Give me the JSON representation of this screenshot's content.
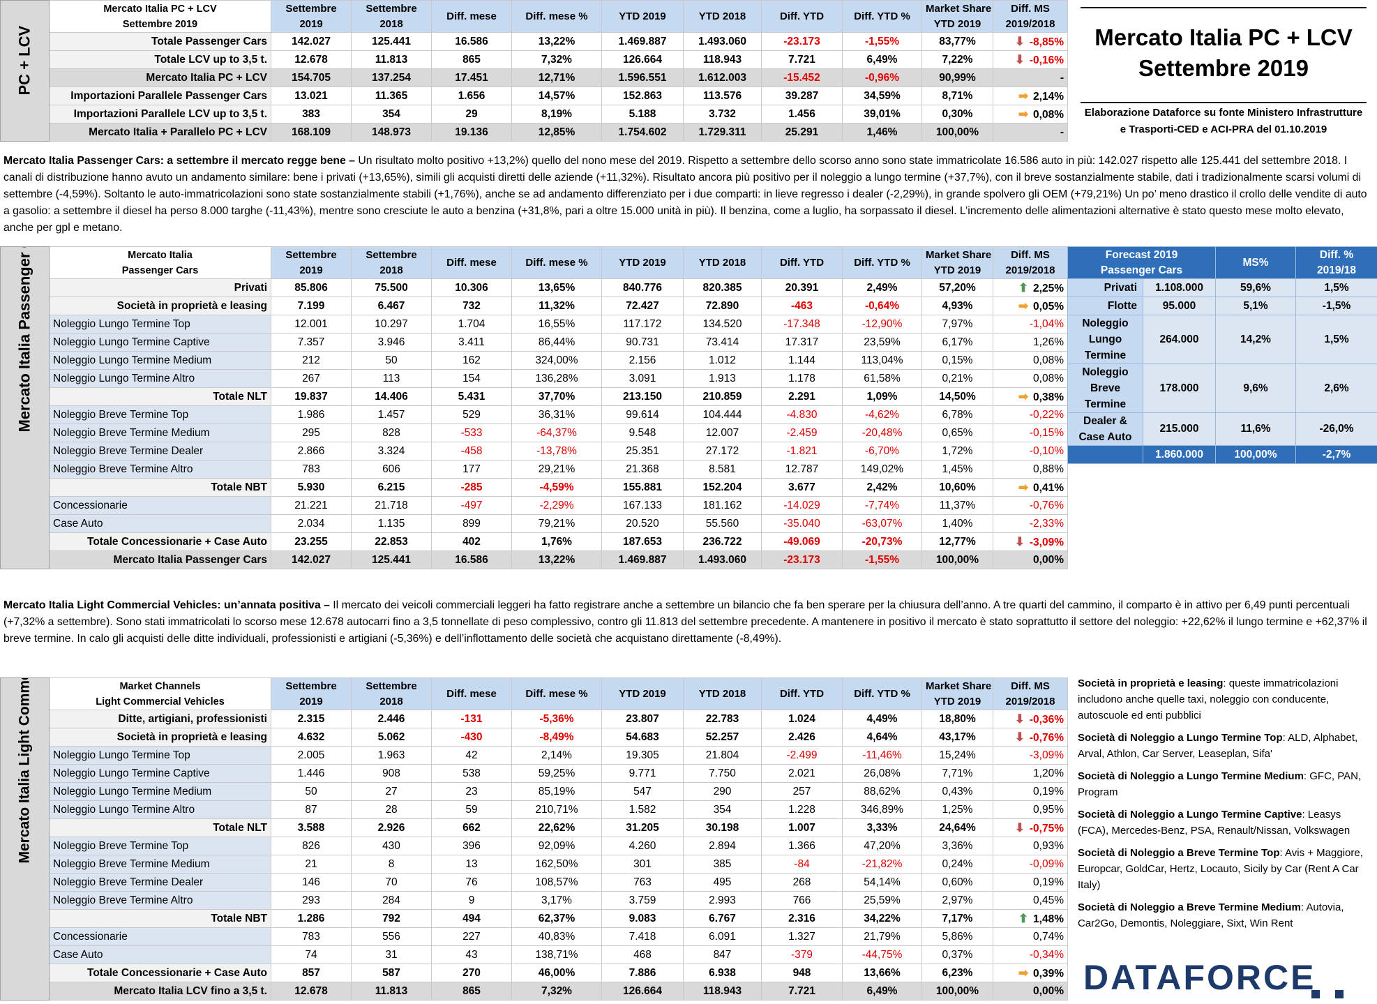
{
  "title": {
    "line1": "Mercato Italia PC + LCV",
    "line2": "Settembre 2019",
    "sub1": "Elaborazione Dataforce su fonte Ministero Infrastrutture",
    "sub2": "e Trasporti-CED e ACI-PRA del 01.10.2019"
  },
  "columns": {
    "c1a": "Settembre",
    "c1b": "2019",
    "c2a": "Settembre",
    "c2b": "2018",
    "c3": "Diff. mese",
    "c4": "Diff. mese %",
    "c5": "YTD 2019",
    "c6": "YTD 2018",
    "c7": "Diff. YTD",
    "c8": "Diff. YTD %",
    "c9a": "Market Share",
    "c9b": "YTD 2019",
    "c10a": "Diff. MS",
    "c10b": "2019/2018"
  },
  "table1": {
    "side": "PC + LCV",
    "head1": "Mercato Italia PC + LCV",
    "head2": "Settembre 2019",
    "rows": [
      {
        "label": "Totale Passenger Cars",
        "v": [
          "142.027",
          "125.441",
          "16.586",
          "13,22%",
          "1.469.887",
          "1.493.060",
          "-23.173",
          "-1,55%",
          "83,77%",
          "-8,85%"
        ]
      },
      {
        "label": "Totale LCV up to 3,5 t.",
        "v": [
          "12.678",
          "11.813",
          "865",
          "7,32%",
          "126.664",
          "118.943",
          "7.721",
          "6,49%",
          "7,22%",
          "-0,16%"
        ]
      },
      {
        "label": "Mercato Italia PC + LCV",
        "v": [
          "154.705",
          "137.254",
          "17.451",
          "12,71%",
          "1.596.551",
          "1.612.003",
          "-15.452",
          "-0,96%",
          "90,99%",
          "-"
        ]
      },
      {
        "label": "Importazioni Parallele Passenger Cars",
        "v": [
          "13.021",
          "11.365",
          "1.656",
          "14,57%",
          "152.863",
          "113.576",
          "39.287",
          "34,59%",
          "8,71%",
          "2,14%"
        ]
      },
      {
        "label": "Importazioni Parallele LCV up to 3,5 t.",
        "v": [
          "383",
          "354",
          "29",
          "8,19%",
          "5.188",
          "3.732",
          "1.456",
          "39,01%",
          "0,30%",
          "0,08%"
        ]
      },
      {
        "label": "Mercato Italia + Parallelo PC + LCV",
        "v": [
          "168.109",
          "148.973",
          "19.136",
          "12,85%",
          "1.754.602",
          "1.729.311",
          "25.291",
          "1,46%",
          "100,00%",
          "-"
        ]
      }
    ]
  },
  "para1": {
    "bold": "Mercato Italia Passenger Cars: a settembre il mercato regge bene –",
    "text": " Un risultato molto positivo +13,2%) quello del nono mese del 2019. Rispetto a settembre dello scorso anno sono state immatricolate 16.586 auto in più: 142.027 rispetto alle 125.441 del settembre 2018. I canali di distribuzione hanno avuto un andamento similare: bene i privati (+13,65%), simili gli acquisti diretti delle aziende (+11,32%). Risultato ancora più positivo per il noleggio a lungo termine (+37,7%), con il breve sostanzialmente stabile, dati i tradizionalmente scarsi volumi di settembre (-4,59%). Soltanto le auto-immatricolazioni sono state sostanzialmente stabili (+1,76%), anche se ad andamento differenziato per i due comparti: in lieve regresso i dealer (-2,29%), in grande spolvero gli OEM (+79,21%) Un po’ meno drastico il crollo delle vendite di auto a gasolio: a settembre il diesel ha perso 8.000 targhe (-11,43%), mentre sono cresciute le auto a benzina (+31,8%, pari a oltre 15.000 unità in più). Il benzina, come a luglio, ha sorpassato il diesel. L’incremento delle alimentazioni alternative è stato questo mese molto elevato, anche per gpl e metano."
  },
  "table2": {
    "side": "Mercato Italia Passenger Cars",
    "head1": "Mercato Italia",
    "head2": "Passenger Cars",
    "rows": [
      {
        "label": "Privati",
        "v": [
          "85.806",
          "75.500",
          "10.306",
          "13,65%",
          "840.776",
          "820.385",
          "20.391",
          "2,49%",
          "57,20%",
          "2,25%"
        ]
      },
      {
        "label": "Società in proprietà e leasing",
        "v": [
          "7.199",
          "6.467",
          "732",
          "11,32%",
          "72.427",
          "72.890",
          "-463",
          "-0,64%",
          "4,93%",
          "0,05%"
        ]
      },
      {
        "label": "Noleggio Lungo Termine Top",
        "v": [
          "12.001",
          "10.297",
          "1.704",
          "16,55%",
          "117.172",
          "134.520",
          "-17.348",
          "-12,90%",
          "7,97%",
          "-1,04%"
        ]
      },
      {
        "label": "Noleggio Lungo Termine Captive",
        "v": [
          "7.357",
          "3.946",
          "3.411",
          "86,44%",
          "90.731",
          "73.414",
          "17.317",
          "23,59%",
          "6,17%",
          "1,26%"
        ]
      },
      {
        "label": "Noleggio Lungo Termine Medium",
        "v": [
          "212",
          "50",
          "162",
          "324,00%",
          "2.156",
          "1.012",
          "1.144",
          "113,04%",
          "0,15%",
          "0,08%"
        ]
      },
      {
        "label": "Noleggio Lungo Termine Altro",
        "v": [
          "267",
          "113",
          "154",
          "136,28%",
          "3.091",
          "1.913",
          "1.178",
          "61,58%",
          "0,21%",
          "0,08%"
        ]
      },
      {
        "label": "Totale NLT",
        "v": [
          "19.837",
          "14.406",
          "5.431",
          "37,70%",
          "213.150",
          "210.859",
          "2.291",
          "1,09%",
          "14,50%",
          "0,38%"
        ]
      },
      {
        "label": "Noleggio Breve Termine Top",
        "v": [
          "1.986",
          "1.457",
          "529",
          "36,31%",
          "99.614",
          "104.444",
          "-4.830",
          "-4,62%",
          "6,78%",
          "-0,22%"
        ]
      },
      {
        "label": "Noleggio Breve Termine Medium",
        "v": [
          "295",
          "828",
          "-533",
          "-64,37%",
          "9.548",
          "12.007",
          "-2.459",
          "-20,48%",
          "0,65%",
          "-0,15%"
        ]
      },
      {
        "label": "Noleggio Breve Termine Dealer",
        "v": [
          "2.866",
          "3.324",
          "-458",
          "-13,78%",
          "25.351",
          "27.172",
          "-1.821",
          "-6,70%",
          "1,72%",
          "-0,10%"
        ]
      },
      {
        "label": "Noleggio Breve Termine Altro",
        "v": [
          "783",
          "606",
          "177",
          "29,21%",
          "21.368",
          "8.581",
          "12.787",
          "149,02%",
          "1,45%",
          "0,88%"
        ]
      },
      {
        "label": "Totale NBT",
        "v": [
          "5.930",
          "6.215",
          "-285",
          "-4,59%",
          "155.881",
          "152.204",
          "3.677",
          "2,42%",
          "10,60%",
          "0,41%"
        ]
      },
      {
        "label": "Concessionarie",
        "v": [
          "21.221",
          "21.718",
          "-497",
          "-2,29%",
          "167.133",
          "181.162",
          "-14.029",
          "-7,74%",
          "11,37%",
          "-0,76%"
        ]
      },
      {
        "label": "Case Auto",
        "v": [
          "2.034",
          "1.135",
          "899",
          "79,21%",
          "20.520",
          "55.560",
          "-35.040",
          "-63,07%",
          "1,40%",
          "-2,33%"
        ]
      },
      {
        "label": "Totale Concessionarie + Case Auto",
        "v": [
          "23.255",
          "22.853",
          "402",
          "1,76%",
          "187.653",
          "236.722",
          "-49.069",
          "-20,73%",
          "12,77%",
          "-3,09%"
        ]
      },
      {
        "label": "Mercato Italia Passenger Cars",
        "v": [
          "142.027",
          "125.441",
          "16.586",
          "13,22%",
          "1.469.887",
          "1.493.060",
          "-23.173",
          "-1,55%",
          "100,00%",
          "0,00%"
        ]
      }
    ]
  },
  "forecast": {
    "h1a": "Forecast 2019",
    "h1b": "Passenger Cars",
    "h2": "MS%",
    "h3a": "Diff. %",
    "h3b": "2019/18",
    "privati": {
      "label": "Privati",
      "v": [
        "1.108.000",
        "59,6%",
        "1,5%"
      ]
    },
    "flotte": {
      "label": "Flotte",
      "v": [
        "95.000",
        "5,1%",
        "-1,5%"
      ]
    },
    "nlt": {
      "label1": "Noleggio",
      "label2": "Lungo",
      "label3": "Termine",
      "v": [
        "264.000",
        "14,2%",
        "1,5%"
      ]
    },
    "nbt": {
      "label1": "Noleggio",
      "label2": "Breve",
      "label3": "Termine",
      "v": [
        "178.000",
        "9,6%",
        "2,6%"
      ]
    },
    "dealer": {
      "label1": "Dealer &",
      "label2": "Case Auto",
      "v": [
        "215.000",
        "11,6%",
        "-26,0%"
      ]
    },
    "total": {
      "v": [
        "1.860.000",
        "100,00%",
        "-2,7%"
      ]
    }
  },
  "para2": {
    "bold": "Mercato Italia Light Commercial Vehicles: un’annata positiva –",
    "text": " Il mercato dei veicoli commerciali leggeri ha fatto registrare anche a settembre un bilancio che fa ben sperare per la chiusura dell’anno. A tre quarti del cammino, il comparto è in attivo per 6,49 punti percentuali (+7,32% a settembre). Sono stati immatricolati lo scorso mese 12.678 autocarri fino a 3,5 tonnellate di peso complessivo, contro gli 11.813 del settembre precedente. A mantenere in positivo il mercato è stato soprattutto il settore del noleggio: +22,62% il lungo termine e +62,37% il breve termine. In calo gli acquisti delle ditte individuali, professionisti e artigiani (-5,36%) e dell’inflottamento delle società che acquistano direttamente (-8,49%)."
  },
  "table3": {
    "side": "Mercato Italia Light Commercial Vehicles",
    "head1": "Market Channels",
    "head2": "Light Commercial Vehicles",
    "rows": [
      {
        "label": "Ditte, artigiani, professionisti",
        "v": [
          "2.315",
          "2.446",
          "-131",
          "-5,36%",
          "23.807",
          "22.783",
          "1.024",
          "4,49%",
          "18,80%",
          "-0,36%"
        ]
      },
      {
        "label": "Società in proprietà e leasing",
        "v": [
          "4.632",
          "5.062",
          "-430",
          "-8,49%",
          "54.683",
          "52.257",
          "2.426",
          "4,64%",
          "43,17%",
          "-0,76%"
        ]
      },
      {
        "label": "Noleggio Lungo Termine Top",
        "v": [
          "2.005",
          "1.963",
          "42",
          "2,14%",
          "19.305",
          "21.804",
          "-2.499",
          "-11,46%",
          "15,24%",
          "-3,09%"
        ]
      },
      {
        "label": "Noleggio Lungo Termine Captive",
        "v": [
          "1.446",
          "908",
          "538",
          "59,25%",
          "9.771",
          "7.750",
          "2.021",
          "26,08%",
          "7,71%",
          "1,20%"
        ]
      },
      {
        "label": "Noleggio Lungo Termine Medium",
        "v": [
          "50",
          "27",
          "23",
          "85,19%",
          "547",
          "290",
          "257",
          "88,62%",
          "0,43%",
          "0,19%"
        ]
      },
      {
        "label": "Noleggio Lungo Termine Altro",
        "v": [
          "87",
          "28",
          "59",
          "210,71%",
          "1.582",
          "354",
          "1.228",
          "346,89%",
          "1,25%",
          "0,95%"
        ]
      },
      {
        "label": "Totale NLT",
        "v": [
          "3.588",
          "2.926",
          "662",
          "22,62%",
          "31.205",
          "30.198",
          "1.007",
          "3,33%",
          "24,64%",
          "-0,75%"
        ]
      },
      {
        "label": "Noleggio Breve Termine Top",
        "v": [
          "826",
          "430",
          "396",
          "92,09%",
          "4.260",
          "2.894",
          "1.366",
          "47,20%",
          "3,36%",
          "0,93%"
        ]
      },
      {
        "label": "Noleggio Breve Termine Medium",
        "v": [
          "21",
          "8",
          "13",
          "162,50%",
          "301",
          "385",
          "-84",
          "-21,82%",
          "0,24%",
          "-0,09%"
        ]
      },
      {
        "label": "Noleggio Breve Termine Dealer",
        "v": [
          "146",
          "70",
          "76",
          "108,57%",
          "763",
          "495",
          "268",
          "54,14%",
          "0,60%",
          "0,19%"
        ]
      },
      {
        "label": "Noleggio Breve Termine Altro",
        "v": [
          "293",
          "284",
          "9",
          "3,17%",
          "3.759",
          "2.993",
          "766",
          "25,59%",
          "2,97%",
          "0,45%"
        ]
      },
      {
        "label": "Totale NBT",
        "v": [
          "1.286",
          "792",
          "494",
          "62,37%",
          "9.083",
          "6.767",
          "2.316",
          "34,22%",
          "7,17%",
          "1,48%"
        ]
      },
      {
        "label": "Concessionarie",
        "v": [
          "783",
          "556",
          "227",
          "40,83%",
          "7.418",
          "6.091",
          "1.327",
          "21,79%",
          "5,86%",
          "0,74%"
        ]
      },
      {
        "label": "Case Auto",
        "v": [
          "74",
          "31",
          "43",
          "138,71%",
          "468",
          "847",
          "-379",
          "-44,75%",
          "0,37%",
          "-0,34%"
        ]
      },
      {
        "label": "Totale Concessionarie + Case Auto",
        "v": [
          "857",
          "587",
          "270",
          "46,00%",
          "7.886",
          "6.938",
          "948",
          "13,66%",
          "6,23%",
          "0,39%"
        ]
      },
      {
        "label": "Mercato Italia LCV fino a 3,5 t.",
        "v": [
          "12.678",
          "11.813",
          "865",
          "7,32%",
          "126.664",
          "118.943",
          "7.721",
          "6,49%",
          "100,00%",
          "0,00%"
        ]
      }
    ]
  },
  "definitions": [
    {
      "bold": "Società in proprietà e leasing",
      "text": ": queste immatricolazioni includono anche quelle taxi, noleggio con conducente, autoscuole ed enti pubblici"
    },
    {
      "bold": "Società di Noleggio a Lungo Termine Top",
      "text": ": ALD, Alphabet, Arval, Athlon, Car Server, Leaseplan, Sifa'"
    },
    {
      "bold": "Società di Noleggio a Lungo Termine Medium",
      "text": ": GFC, PAN, Program"
    },
    {
      "bold": "Società di Noleggio a Lungo Termine Captive",
      "text": ": Leasys (FCA), Mercedes-Benz, PSA, Renault/Nissan, Volkswagen"
    },
    {
      "bold": "Società di Noleggio a Breve Termine Top",
      "text": ": Avis + Maggiore, Europcar, GoldCar, Hertz, Locauto, Sicily by Car (Rent A Car Italy)"
    },
    {
      "bold": "Società di Noleggio a Breve Termine Medium",
      "text": ": Autovia, Car2Go, Demontis, Noleggiare, Sixt, Win Rent"
    }
  ],
  "logo": "DATAFORCE",
  "colors": {
    "negative": "#e00000",
    "header_blue": "#c5d9f1",
    "forecast_blue": "#2f6fba",
    "arrow_down": "#c0504d",
    "arrow_up": "#4f9a5b",
    "arrow_right": "#f0a030"
  }
}
